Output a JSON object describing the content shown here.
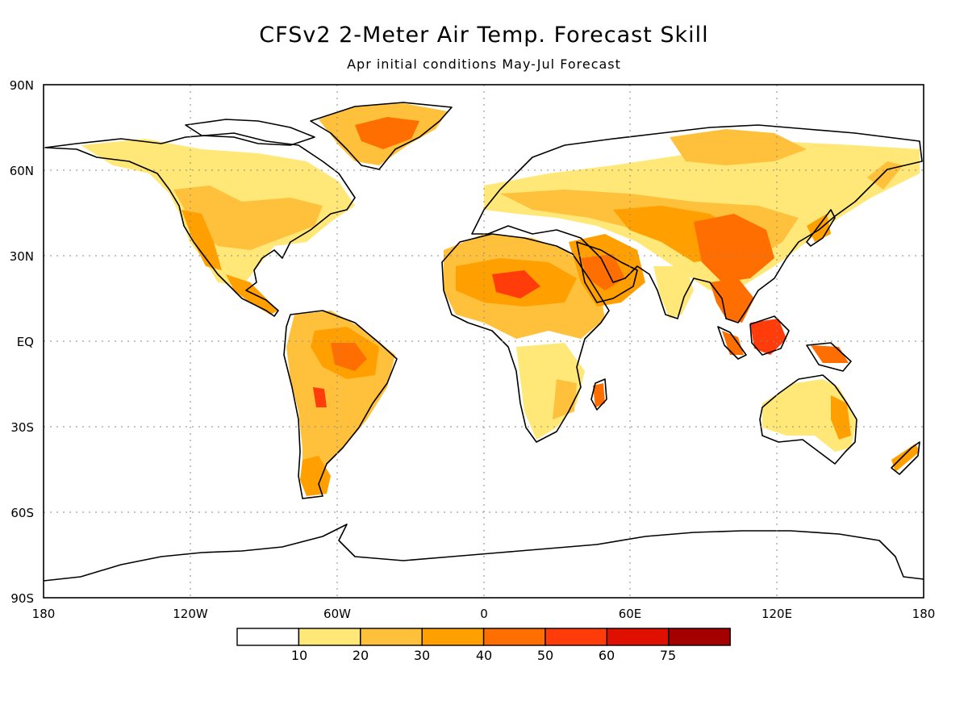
{
  "title": "CFSv2 2-Meter Air Temp. Forecast Skill",
  "subtitle": "Apr initial conditions   May-Jul Forecast",
  "axes": {
    "lat_labels": [
      "90N",
      "60N",
      "30N",
      "EQ",
      "30S",
      "60S",
      "90S"
    ],
    "lon_labels": [
      "180",
      "120W",
      "60W",
      "0",
      "60E",
      "120E",
      "180"
    ],
    "lat_values": [
      90,
      60,
      30,
      0,
      -30,
      -60,
      -90
    ],
    "lon_values": [
      -180,
      -120,
      -60,
      0,
      60,
      120,
      180
    ]
  },
  "colorbar": {
    "labels": [
      "10",
      "20",
      "30",
      "40",
      "50",
      "60",
      "75"
    ],
    "colors": [
      "#ffffff",
      "#ffe878",
      "#ffc03c",
      "#ffa000",
      "#ff6e00",
      "#ff3c0a",
      "#e01000",
      "#a50000"
    ]
  },
  "colors": {
    "coast": "#000000",
    "grid": "#8a8a8a"
  }
}
